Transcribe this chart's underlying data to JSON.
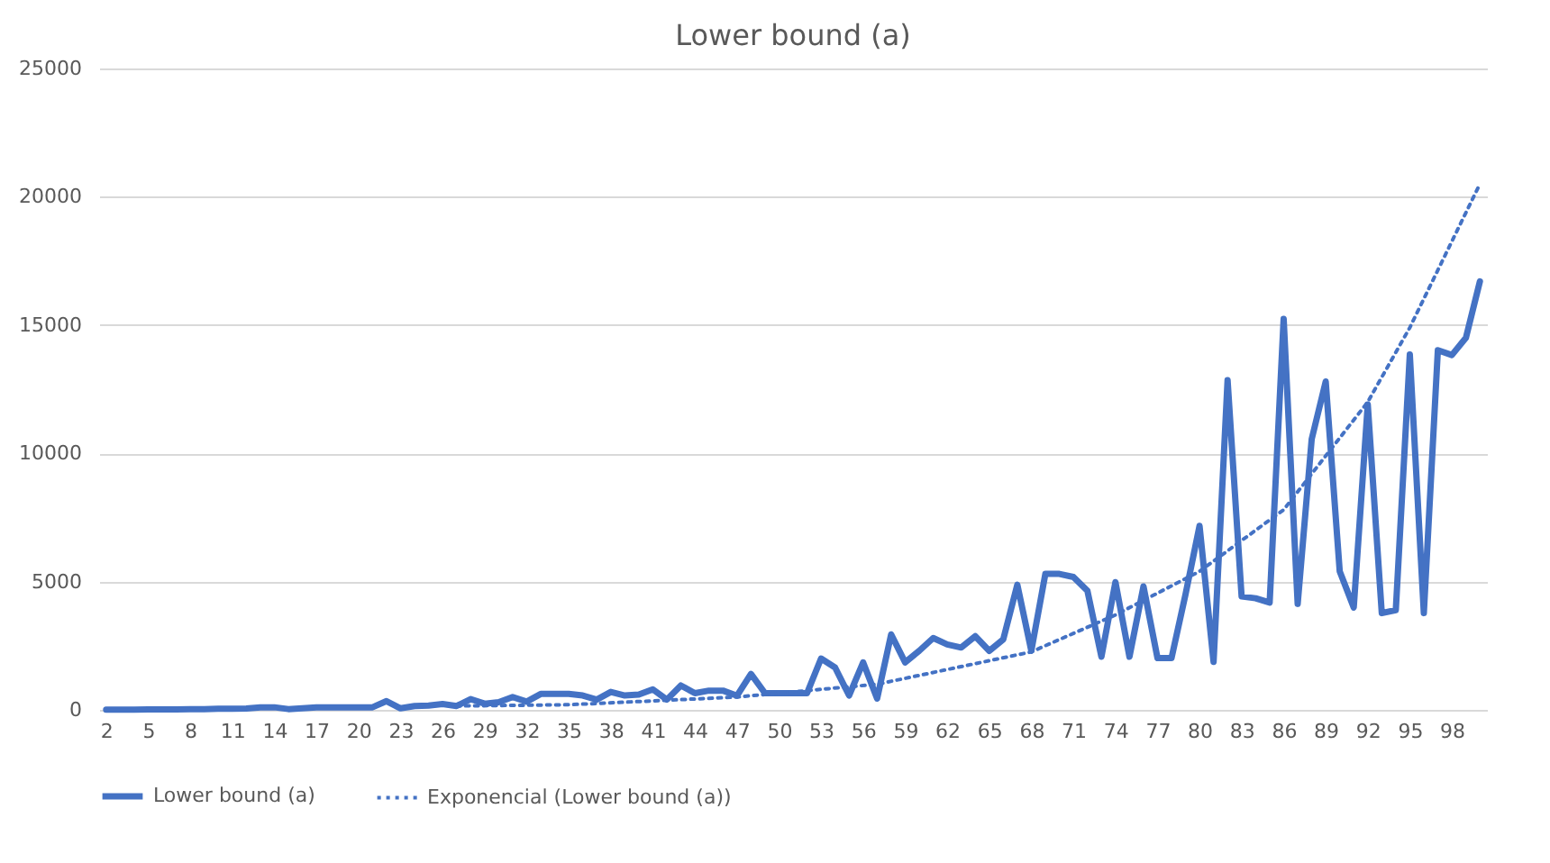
{
  "chart_data": {
    "type": "line",
    "title": "Lower bound (a)",
    "x": [
      2,
      3,
      4,
      5,
      6,
      7,
      8,
      9,
      10,
      11,
      12,
      13,
      14,
      15,
      16,
      17,
      18,
      19,
      20,
      21,
      22,
      23,
      24,
      25,
      26,
      27,
      28,
      29,
      30,
      31,
      32,
      33,
      34,
      35,
      36,
      37,
      38,
      39,
      40,
      41,
      42,
      43,
      44,
      45,
      46,
      47,
      48,
      49,
      50,
      51,
      52,
      53,
      54,
      55,
      56,
      57,
      58,
      59,
      60,
      61,
      62,
      63,
      64,
      65,
      66,
      67,
      68,
      69,
      70,
      71,
      72,
      73,
      74,
      75,
      76,
      77,
      78,
      79,
      80,
      81,
      82,
      83,
      84,
      85,
      86,
      87,
      88,
      89,
      90,
      91,
      92,
      93,
      94,
      95,
      96,
      97,
      98,
      99,
      100
    ],
    "xlim": [
      1.5,
      100.5
    ],
    "xticks": [
      2,
      5,
      8,
      11,
      14,
      17,
      20,
      23,
      26,
      29,
      32,
      35,
      38,
      41,
      44,
      47,
      50,
      53,
      56,
      59,
      62,
      65,
      68,
      71,
      74,
      77,
      80,
      83,
      86,
      89,
      92,
      95,
      98
    ],
    "ylim": [
      0,
      25000
    ],
    "yticks": [
      0,
      5000,
      10000,
      15000,
      20000,
      25000
    ],
    "grid": "y",
    "legend": "bottom",
    "series": [
      {
        "name": "Lower bound (a)",
        "color": "#4472c4",
        "line_style": "solid",
        "values": [
          10,
          10,
          10,
          20,
          20,
          20,
          30,
          30,
          40,
          40,
          50,
          100,
          100,
          30,
          60,
          100,
          100,
          100,
          100,
          100,
          340,
          60,
          150,
          170,
          230,
          150,
          420,
          240,
          300,
          500,
          320,
          620,
          620,
          620,
          560,
          400,
          700,
          560,
          600,
          800,
          400,
          950,
          650,
          750,
          750,
          550,
          1400,
          650,
          650,
          650,
          650,
          2000,
          1650,
          560,
          1850,
          440,
          2940,
          1850,
          2300,
          2800,
          2550,
          2430,
          2870,
          2300,
          2750,
          4880,
          2300,
          5300,
          5300,
          5180,
          4640,
          2070,
          4980,
          2070,
          4810,
          2020,
          2020,
          4500,
          7170,
          1870,
          12850,
          4420,
          4350,
          4180,
          15240,
          4130,
          10550,
          12800,
          5400,
          3990,
          11900,
          3770,
          3890,
          13850,
          3770,
          14020,
          13830,
          14500,
          16700
        ]
      },
      {
        "name": "Exponencial (Lower bound (a))",
        "color": "#4472c4",
        "line_style": "dotted",
        "x": [
          27,
          35,
          47,
          57,
          68,
          74,
          80,
          86,
          92,
          95,
          100
        ],
        "values": [
          150,
          200,
          500,
          1000,
          2260,
          3700,
          5400,
          7800,
          12000,
          14900,
          20500
        ]
      }
    ]
  }
}
